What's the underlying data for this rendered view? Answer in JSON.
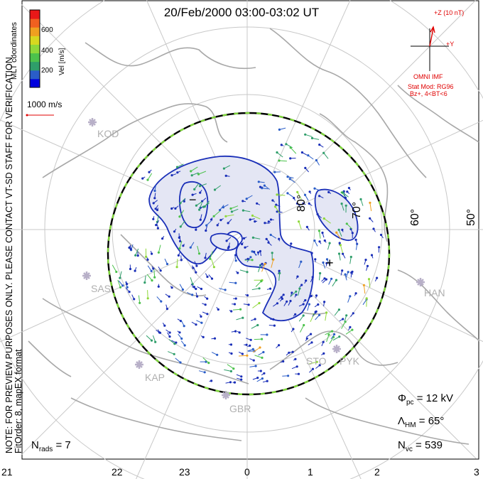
{
  "title": "20/Feb/2000 03:00-03:02 UT",
  "note_lines": [
    "NOTE: FOR PREVIEW PURPOSES ONLY. PLEASE CONTACT VT-SD STAFF FOR VERIFICATION.",
    "FitOrder: 8, mapEX format"
  ],
  "colorbar": {
    "coord_label": "MLT coordinates",
    "unit_label": "Vel [m/s]",
    "ticks": [
      "600",
      "400",
      "200"
    ],
    "colors": [
      "#0000dd",
      "#2a5dc8",
      "#2f9e6a",
      "#4cc24c",
      "#8fd83a",
      "#d8d820",
      "#f0a020",
      "#f06020",
      "#e81818"
    ]
  },
  "scale_vector_label": "1000 m/s",
  "imf": {
    "z_label": "+Z (10 nT)",
    "y_label": "+Y",
    "source": "OMNI IMF",
    "model": "Stat Mod: RG96",
    "condition": "Bz+, 4<BT<6"
  },
  "latitude_labels": [
    "80°",
    "70°",
    "60°",
    "50°"
  ],
  "sites": [
    "KOD",
    "SAS",
    "KAP",
    "GBR",
    "STO",
    "PYK",
    "HAN"
  ],
  "potential_markers": [
    "−",
    "+"
  ],
  "stats": {
    "n_rads": "7",
    "phi_pc": "12 kV",
    "lambda_hm": "65°",
    "n_vc": "539"
  },
  "mlt_ticks": [
    "21",
    "22",
    "23",
    "0",
    "1",
    "2",
    "3"
  ],
  "colors": {
    "contour": "#1a2fb8",
    "fill": "#e4e6f4",
    "hmb_dash": "#7fd83a",
    "grid": "#c8c8c8",
    "land": "#a8a8a8",
    "imf": "#e00000"
  }
}
